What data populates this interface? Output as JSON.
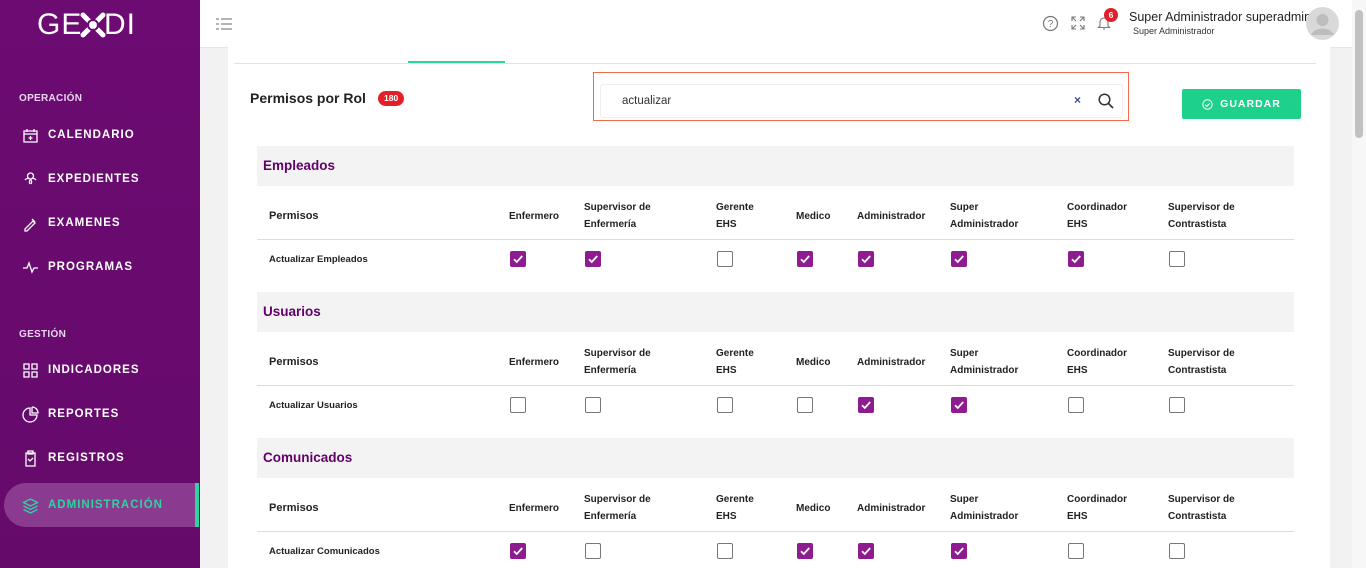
{
  "logo": {
    "left": "GE",
    "right": "DI"
  },
  "sidebar": {
    "sections": [
      {
        "title": "OPERACIÓN",
        "items": [
          "CALENDARIO",
          "EXPEDIENTES",
          "EXAMENES",
          "PROGRAMAS"
        ]
      },
      {
        "title": "GESTIÓN",
        "items": [
          "INDICADORES",
          "REPORTES",
          "REGISTROS",
          "ADMINISTRACIÓN"
        ]
      }
    ],
    "active": "ADMINISTRACIÓN"
  },
  "header": {
    "notifications": "6",
    "user_name": "Super Administrador superadmin",
    "user_role": "Super Administrador"
  },
  "page": {
    "title": "Permisos por Rol",
    "badge": "180",
    "search": "actualizar",
    "save_button": "GUARDAR"
  },
  "columns": [
    "Permisos",
    "Enfermero",
    "Supervisor de Enfermería",
    "Gerente EHS",
    "Medico",
    "Administrador",
    "Super Administrador",
    "Coordinador EHS",
    "Supervisor de Contrastista"
  ],
  "sections": [
    {
      "title": "Empleados",
      "rows": [
        {
          "label": "Actualizar Empleados",
          "checks": [
            true,
            true,
            false,
            true,
            true,
            true,
            true,
            false
          ]
        }
      ]
    },
    {
      "title": "Usuarios",
      "rows": [
        {
          "label": "Actualizar Usuarios",
          "checks": [
            false,
            false,
            false,
            false,
            true,
            true,
            false,
            false
          ]
        }
      ]
    },
    {
      "title": "Comunicados",
      "rows": [
        {
          "label": "Actualizar Comunicados",
          "checks": [
            true,
            false,
            false,
            true,
            true,
            true,
            false,
            false
          ]
        }
      ]
    }
  ]
}
